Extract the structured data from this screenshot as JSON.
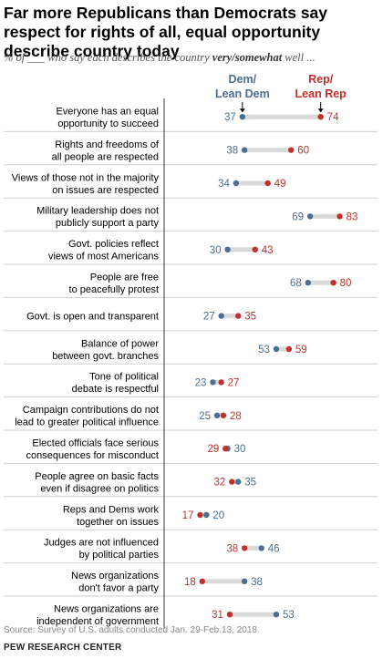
{
  "header": {
    "title": "Far more Republicans than Democrats say respect for rights of all, equal opportunity describe country today",
    "subtitle_pre": "% of ___ who say each describes the country ",
    "subtitle_em": "very/somewhat",
    "subtitle_post": " well ..."
  },
  "footer": {
    "source": "Source: Survey of U.S. adults conducted Jan. 29-Feb.13, 2018.",
    "org": "PEW RESEARCH CENTER"
  },
  "colors": {
    "dem": "#4a6f93",
    "rep": "#c1312b",
    "bar": "#d9d9d9",
    "rule": "#cfcfcf",
    "axis": "#333333"
  },
  "chart_data": {
    "type": "dot-range",
    "legend": [
      {
        "name": "Dem/ Lean Dem",
        "lines": [
          "Dem/",
          "Lean Dem"
        ]
      },
      {
        "name": "Rep/ Lean Rep",
        "lines": [
          "Rep/",
          "Lean Rep"
        ]
      }
    ],
    "xlim": [
      0,
      100
    ],
    "categories": [
      [
        "Everyone has an equal",
        "opportunity to succeed"
      ],
      [
        "Rights and freedoms of",
        "all people are respected"
      ],
      [
        "Views of those not in the majority",
        "on issues are respected"
      ],
      [
        "Military leadership does not",
        "publicly support a party"
      ],
      [
        "Govt. policies reflect",
        "views of most Americans"
      ],
      [
        "People are free",
        "to peacefully protest"
      ],
      [
        "Govt. is open and transparent"
      ],
      [
        "Balance of power",
        "between govt. branches"
      ],
      [
        "Tone of political",
        "debate is respectful"
      ],
      [
        "Campaign contributions do not",
        "lead to greater political influence"
      ],
      [
        "Elected officials face serious",
        "consequences for misconduct"
      ],
      [
        "People agree on basic facts",
        "even if disagree on politics"
      ],
      [
        "Reps and Dems work",
        "together on issues"
      ],
      [
        "Judges are not influenced",
        "by political parties"
      ],
      [
        "News organizations",
        "don't favor a party"
      ],
      [
        "News organizations are",
        "independent of government"
      ]
    ],
    "series": [
      {
        "name": "Dem/ Lean Dem",
        "values": [
          37,
          38,
          34,
          69,
          30,
          68,
          27,
          53,
          23,
          25,
          30,
          35,
          20,
          46,
          38,
          53
        ]
      },
      {
        "name": "Rep/ Lean Rep",
        "values": [
          74,
          60,
          49,
          83,
          43,
          80,
          35,
          59,
          27,
          28,
          29,
          32,
          17,
          38,
          18,
          31
        ]
      }
    ]
  }
}
